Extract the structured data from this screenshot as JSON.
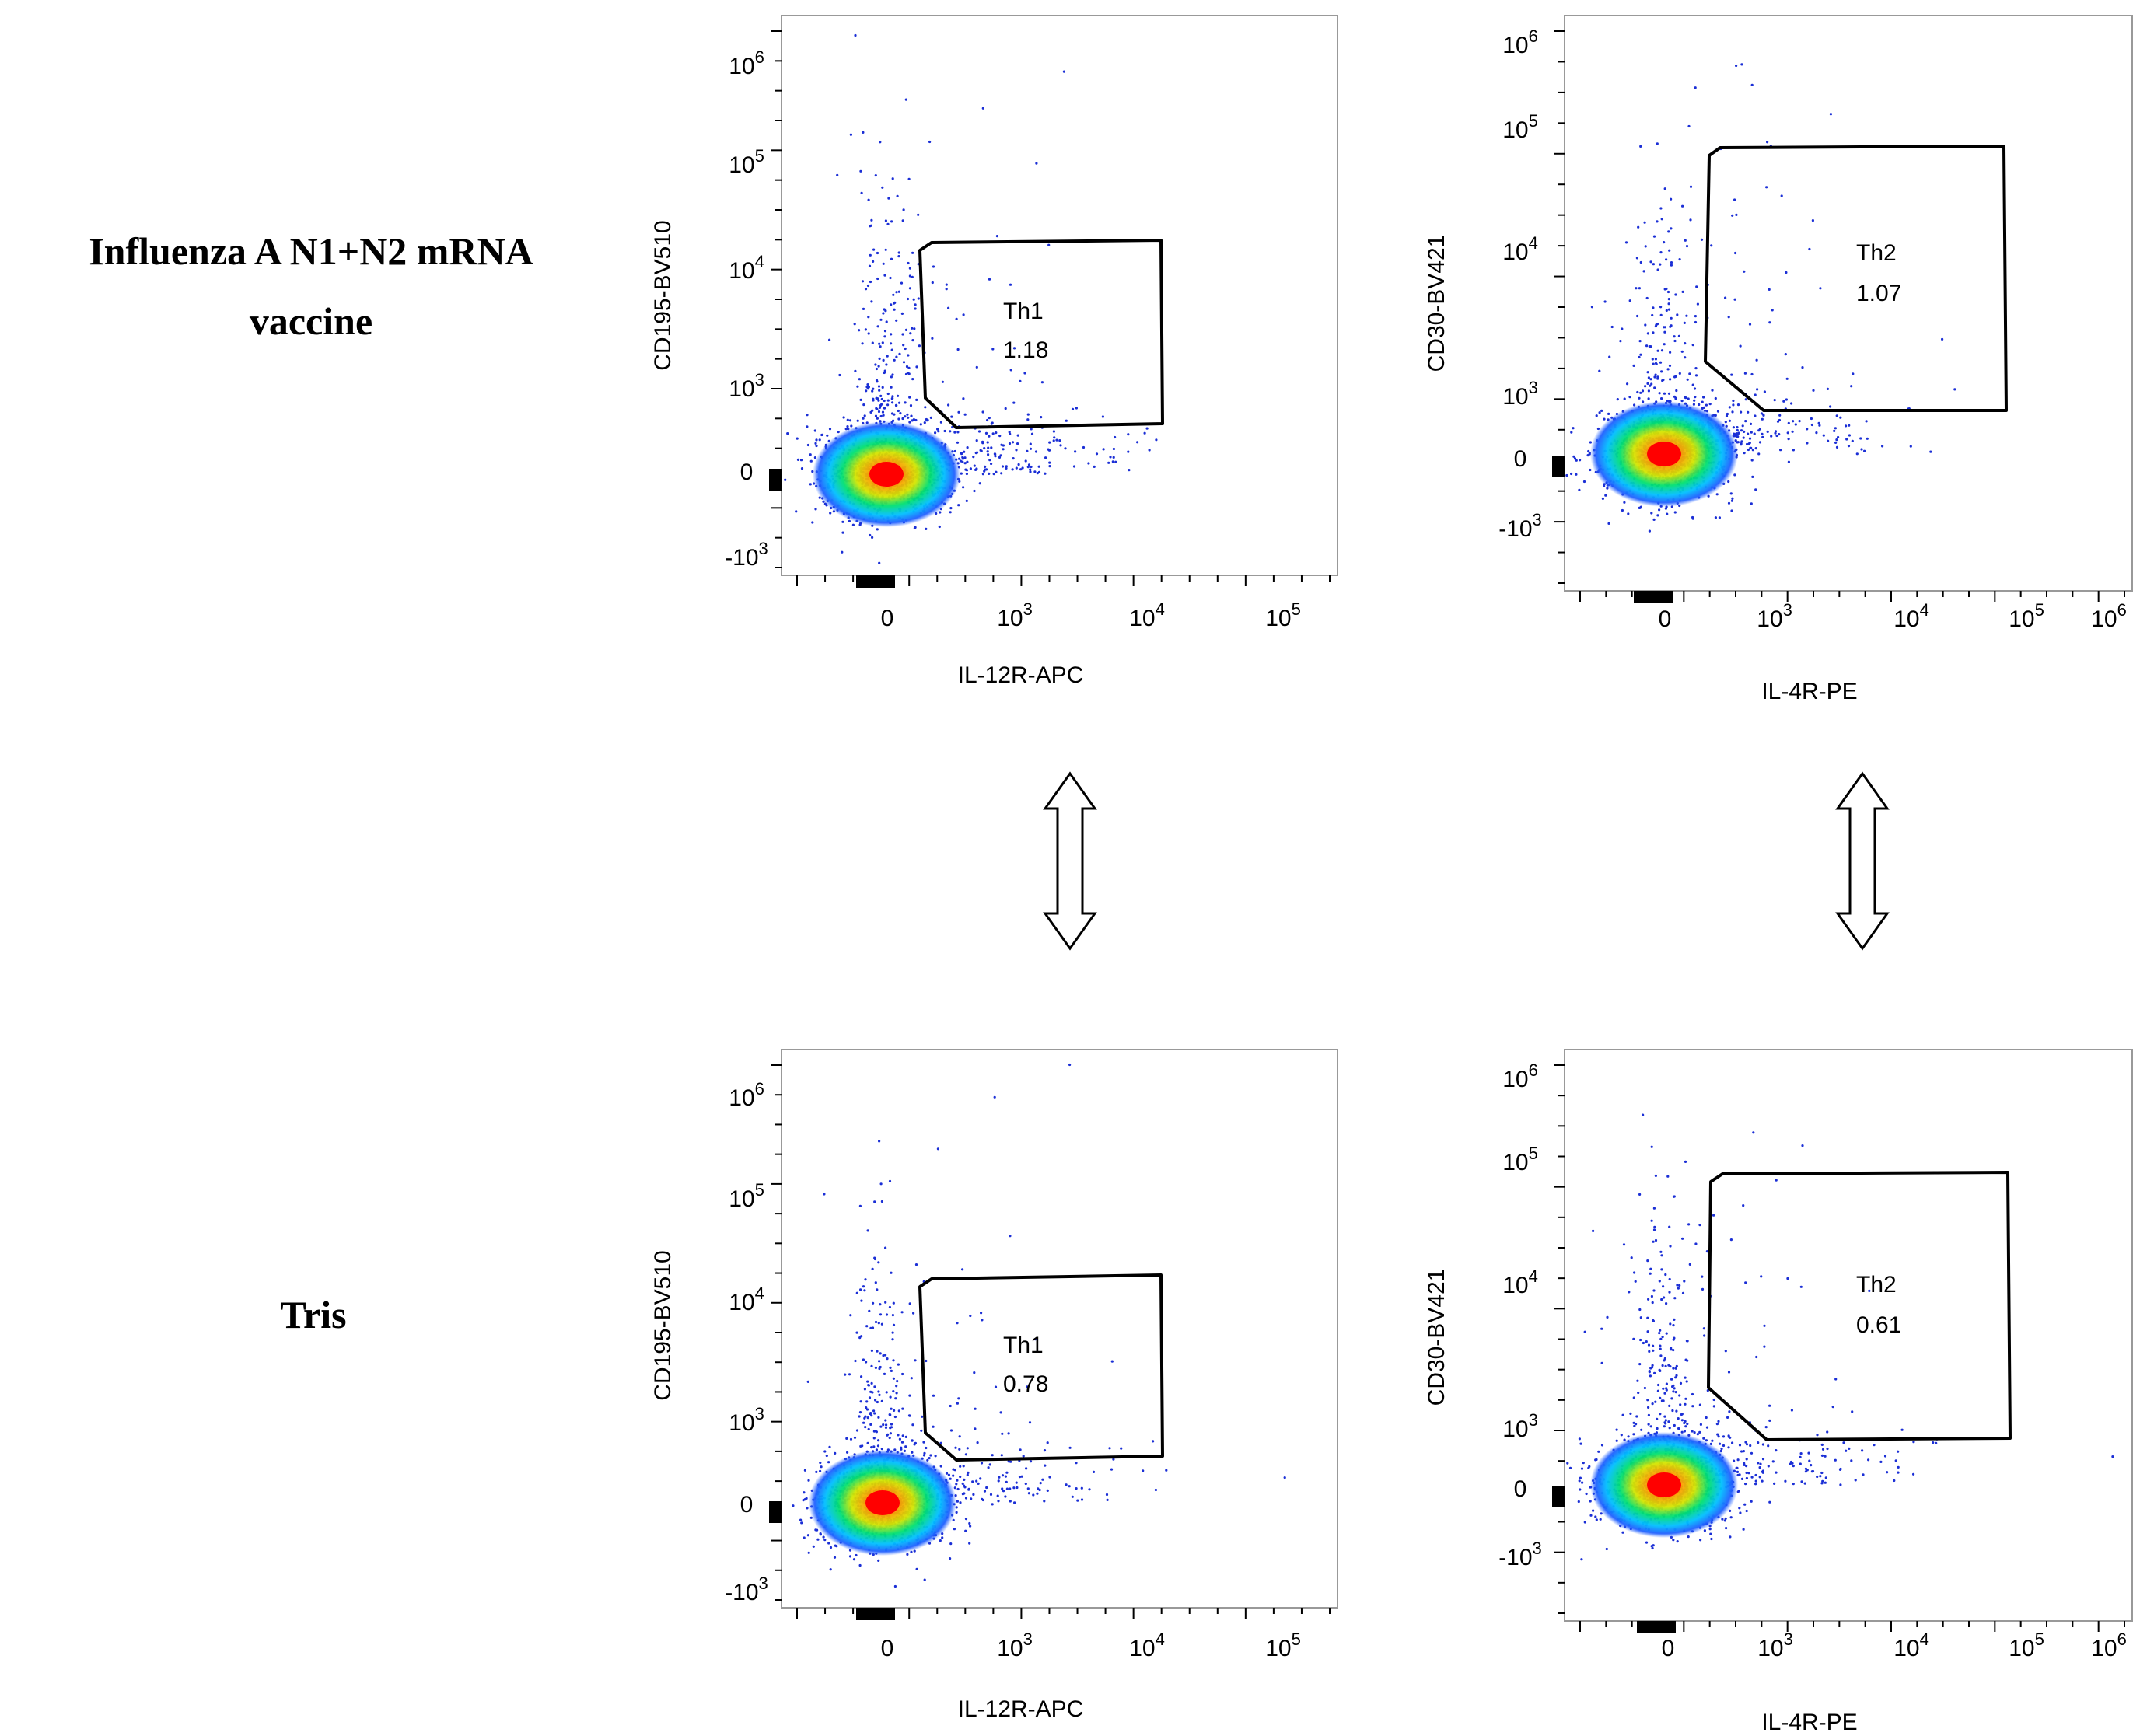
{
  "row_labels": [
    {
      "line1": "Influenza A N1+N2 mRNA",
      "line2": "vaccine"
    },
    {
      "line1": "Tris",
      "line2": ""
    }
  ],
  "chart_data": [
    {
      "type": "scatter",
      "subtype": "flow-cytometry-density-plot",
      "row": "Influenza A N1+N2 mRNA vaccine",
      "xlabel": "IL-12R-APC",
      "ylabel": "CD195-BV510",
      "x_ticks": [
        "0",
        "10^3",
        "10^4",
        "10^5"
      ],
      "y_ticks": [
        "10^6",
        "10^5",
        "10^4",
        "10^3",
        "0",
        "-10^3"
      ],
      "gate": {
        "name": "Th1",
        "percent": "1.18"
      }
    },
    {
      "type": "scatter",
      "subtype": "flow-cytometry-density-plot",
      "row": "Influenza A N1+N2 mRNA vaccine",
      "xlabel": "IL-4R-PE",
      "ylabel": "CD30-BV421",
      "x_ticks": [
        "0",
        "10^3",
        "10^4",
        "10^5",
        "10^6"
      ],
      "y_ticks": [
        "10^6",
        "10^5",
        "10^4",
        "10^3",
        "0",
        "-10^3"
      ],
      "gate": {
        "name": "Th2",
        "percent": "1.07"
      }
    },
    {
      "type": "scatter",
      "subtype": "flow-cytometry-density-plot",
      "row": "Tris",
      "xlabel": "IL-12R-APC",
      "ylabel": "CD195-BV510",
      "x_ticks": [
        "0",
        "10^3",
        "10^4",
        "10^5"
      ],
      "y_ticks": [
        "10^6",
        "10^5",
        "10^4",
        "10^3",
        "0",
        "-10^3"
      ],
      "gate": {
        "name": "Th1",
        "percent": "0.78"
      }
    },
    {
      "type": "scatter",
      "subtype": "flow-cytometry-density-plot",
      "row": "Tris",
      "xlabel": "IL-4R-PE",
      "ylabel": "CD30-BV421",
      "x_ticks": [
        "0",
        "10^3",
        "10^4",
        "10^5",
        "10^6"
      ],
      "y_ticks": [
        "10^6",
        "10^5",
        "10^4",
        "10^3",
        "0",
        "-10^3"
      ],
      "gate": {
        "name": "Th2",
        "percent": "0.61"
      }
    }
  ],
  "colors": {
    "frame": "#999999",
    "text": "#000000",
    "density": [
      "#0000cc",
      "#0066ff",
      "#00ccff",
      "#00e060",
      "#c8e600",
      "#ffaa00",
      "#ff0000"
    ]
  }
}
